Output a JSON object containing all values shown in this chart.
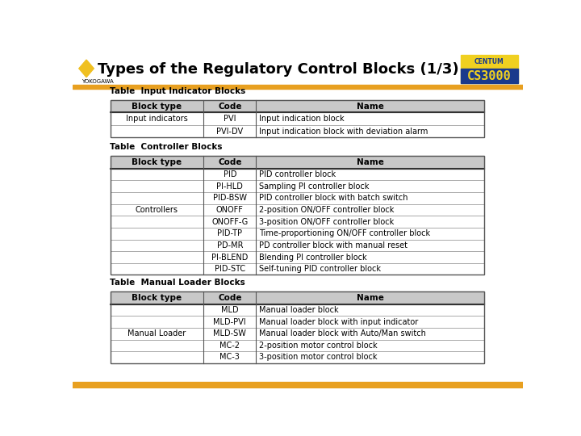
{
  "title": "Types of the Regulatory Control Blocks (1/3)",
  "yokogawa_text": "YOKOGAWA",
  "header_bar_color": "#e8a020",
  "diamond_color": "#f0c020",
  "table1_title": "Table  Input Indicator Blocks",
  "table1_headers": [
    "Block type",
    "Code",
    "Name"
  ],
  "table1_rows": [
    [
      "Input indicators",
      "PVI",
      "Input indication block"
    ],
    [
      "",
      "PVI-DV",
      "Input indication block with deviation alarm"
    ]
  ],
  "table2_title": "Table  Controller Blocks",
  "table2_headers": [
    "Block type",
    "Code",
    "Name"
  ],
  "table2_rows": [
    [
      "",
      "PID",
      "PID controller block"
    ],
    [
      "",
      "PI-HLD",
      "Sampling PI controller block"
    ],
    [
      "",
      "PID-BSW",
      "PID controller block with batch switch"
    ],
    [
      "Controllers",
      "ONOFF",
      "2-position ON/OFF controller block"
    ],
    [
      "",
      "ONOFF-G",
      "3-position ON/OFF controller block"
    ],
    [
      "",
      "PID-TP",
      "Time-proportioning ON/OFF controller block"
    ],
    [
      "",
      "PD-MR",
      "PD controller block with manual reset"
    ],
    [
      "",
      "PI-BLEND",
      "Blending PI controller block"
    ],
    [
      "",
      "PID-STC",
      "Self-tuning PID controller block"
    ]
  ],
  "table3_title": "Table  Manual Loader Blocks",
  "table3_headers": [
    "Block type",
    "Code",
    "Name"
  ],
  "table3_rows": [
    [
      "",
      "MLD",
      "Manual loader block"
    ],
    [
      "",
      "MLD-PVI",
      "Manual loader block with input indicator"
    ],
    [
      "Manual Loader",
      "MLD-SW",
      "Manual loader block with Auto/Man switch"
    ],
    [
      "",
      "MC-2",
      "2-position motor control block"
    ],
    [
      "",
      "MC-3",
      "3-position motor control block"
    ]
  ]
}
